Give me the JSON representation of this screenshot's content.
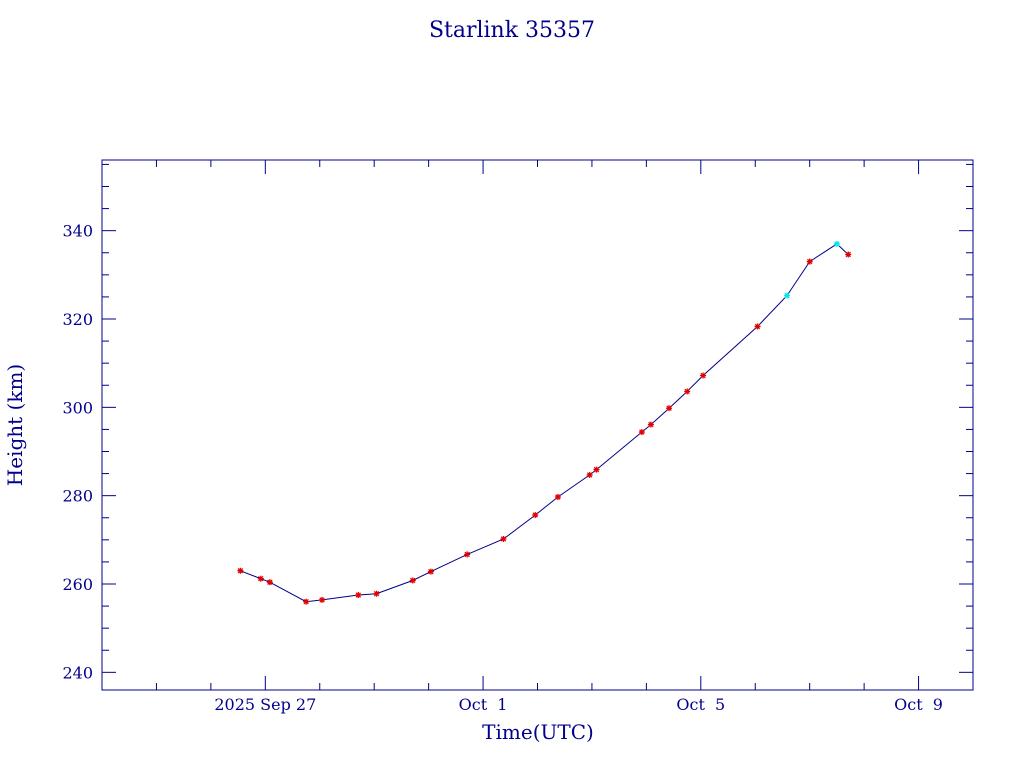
{
  "chart_data": {
    "type": "line",
    "title": "Starlink 35357",
    "xlabel": "Time(UTC)",
    "ylabel": "Height (km)",
    "xlim": [
      "2025-09-24T00:00:00",
      "2025-10-10T00:00:00"
    ],
    "ylim": [
      236,
      356
    ],
    "x_ticks": [
      {
        "label": "2025 Sep 27",
        "date": "2025-09-27T00:00:00"
      },
      {
        "label": "Oct  1",
        "date": "2025-10-01T00:00:00"
      },
      {
        "label": "Oct  5",
        "date": "2025-10-05T00:00:00"
      },
      {
        "label": "Oct  9",
        "date": "2025-10-09T00:00:00"
      }
    ],
    "y_ticks": [
      240,
      260,
      280,
      300,
      320,
      340
    ],
    "grid": false,
    "colors": {
      "line": "#00008b",
      "marker": "#e00000",
      "marker_alt": "#00e5ee",
      "frame": "#00008b",
      "text": "#00008b"
    },
    "series": [
      {
        "points": [
          {
            "x": "2025-09-26T13:00:00",
            "y": 263.0,
            "m": "r"
          },
          {
            "x": "2025-09-26T22:00:00",
            "y": 261.2,
            "m": "r"
          },
          {
            "x": "2025-09-27T02:00:00",
            "y": 260.4,
            "m": "r"
          },
          {
            "x": "2025-09-27T18:00:00",
            "y": 256.0,
            "m": "r"
          },
          {
            "x": "2025-09-28T01:00:00",
            "y": 256.4,
            "m": "r"
          },
          {
            "x": "2025-09-28T17:00:00",
            "y": 257.5,
            "m": "r"
          },
          {
            "x": "2025-09-29T01:00:00",
            "y": 257.8,
            "m": "r"
          },
          {
            "x": "2025-09-29T17:00:00",
            "y": 260.8,
            "m": "r"
          },
          {
            "x": "2025-09-30T01:00:00",
            "y": 262.8,
            "m": "r"
          },
          {
            "x": "2025-09-30T17:00:00",
            "y": 266.7,
            "m": "r"
          },
          {
            "x": "2025-10-01T09:00:00",
            "y": 270.2,
            "m": "r"
          },
          {
            "x": "2025-10-01T23:00:00",
            "y": 275.6,
            "m": "r"
          },
          {
            "x": "2025-10-02T09:00:00",
            "y": 279.7,
            "m": "r"
          },
          {
            "x": "2025-10-02T23:00:00",
            "y": 284.7,
            "m": "r"
          },
          {
            "x": "2025-10-03T02:00:00",
            "y": 285.9,
            "m": "r"
          },
          {
            "x": "2025-10-03T22:00:00",
            "y": 294.4,
            "m": "r"
          },
          {
            "x": "2025-10-04T02:00:00",
            "y": 296.1,
            "m": "r"
          },
          {
            "x": "2025-10-04T10:00:00",
            "y": 299.8,
            "m": "r"
          },
          {
            "x": "2025-10-04T18:00:00",
            "y": 303.6,
            "m": "r"
          },
          {
            "x": "2025-10-05T01:00:00",
            "y": 307.2,
            "m": "r"
          },
          {
            "x": "2025-10-06T01:00:00",
            "y": 318.3,
            "m": "r"
          },
          {
            "x": "2025-10-06T14:00:00",
            "y": 325.3,
            "m": "c"
          },
          {
            "x": "2025-10-07T00:00:00",
            "y": 333.0,
            "m": "r"
          },
          {
            "x": "2025-10-07T12:00:00",
            "y": 337.0,
            "m": "c"
          },
          {
            "x": "2025-10-07T17:00:00",
            "y": 334.6,
            "m": "r"
          }
        ]
      }
    ]
  }
}
